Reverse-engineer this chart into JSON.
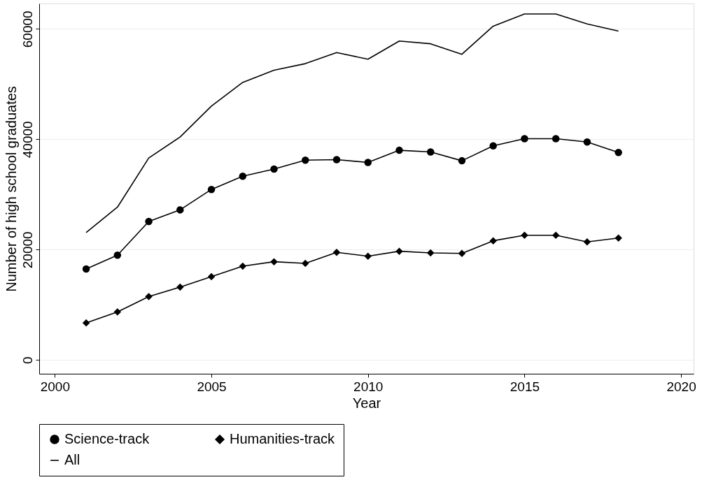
{
  "chart_data": {
    "type": "line",
    "xlabel": "Year",
    "ylabel": "Number of high school graduates",
    "x": [
      2001,
      2002,
      2003,
      2004,
      2005,
      2006,
      2007,
      2008,
      2009,
      2010,
      2011,
      2012,
      2013,
      2014,
      2015,
      2016,
      2017,
      2018
    ],
    "series": [
      {
        "name": "Science-track",
        "color": "#000000",
        "marker": "circle",
        "values": [
          16500,
          19000,
          25100,
          27200,
          30900,
          33300,
          34600,
          36200,
          36300,
          35800,
          38000,
          37700,
          36100,
          38800,
          40100,
          40100,
          39500,
          37600
        ]
      },
      {
        "name": "Humanities-track",
        "color": "#000000",
        "marker": "diamond",
        "values": [
          6700,
          8700,
          11500,
          13200,
          15100,
          17000,
          17800,
          17500,
          19500,
          18800,
          19700,
          19400,
          19300,
          21600,
          22600,
          22600,
          21400,
          22100
        ]
      },
      {
        "name": "All",
        "color": "#000000",
        "marker": "none",
        "values": [
          23100,
          27700,
          36600,
          40400,
          46000,
          50300,
          52500,
          53700,
          55700,
          54500,
          57800,
          57300,
          55400,
          60500,
          62700,
          62700,
          60900,
          59600
        ]
      }
    ],
    "xlim": [
      1999.5,
      2020.4
    ],
    "xticks": [
      2000,
      2005,
      2010,
      2015,
      2020
    ],
    "ylim": [
      -2500,
      64600
    ],
    "yticks": [
      0,
      20000,
      40000,
      60000
    ],
    "grid": "y",
    "legend": "bottom",
    "line_style": "solid"
  }
}
